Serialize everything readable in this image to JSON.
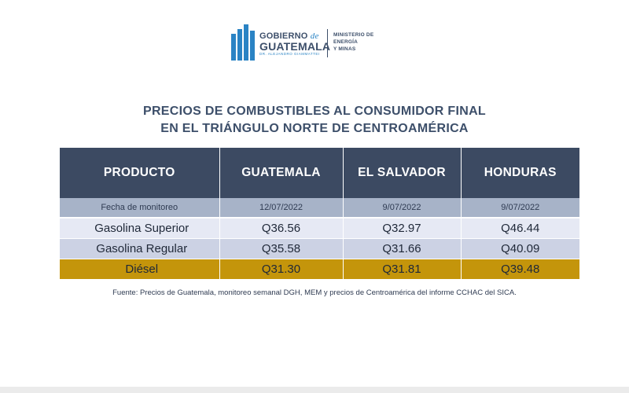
{
  "logo": {
    "line1_a": "GOBIERNO",
    "line1_de": "de",
    "line2": "GUATEMALA",
    "line3": "DR. ALEJANDRO GIAMMATTEI",
    "ministry": [
      "MINISTERIO DE",
      "ENERGÍA",
      "Y MINAS"
    ]
  },
  "title": {
    "line1": "PRECIOS DE COMBUSTIBLES AL CONSUMIDOR FINAL",
    "line2": "EN EL TRIÁNGULO NORTE DE CENTROAMÉRICA"
  },
  "table": {
    "headers": [
      "PRODUCTO",
      "GUATEMALA",
      "EL SALVADOR",
      "HONDURAS"
    ],
    "date_row": [
      "Fecha de monitoreo",
      "12/07/2022",
      "9/07/2022",
      "9/07/2022"
    ],
    "rows": [
      [
        "Gasolina Superior",
        "Q36.56",
        "Q32.97",
        "Q46.44"
      ],
      [
        "Gasolina Regular",
        "Q35.58",
        "Q31.66",
        "Q40.09"
      ],
      [
        "Diésel",
        "Q31.30",
        "Q31.81",
        "Q39.48"
      ]
    ]
  },
  "source": "Fuente: Precios de Guatemala, monitoreo semanal DGH, MEM y precios de Centroamérica del informe CCHAC del SICA.",
  "colors": {
    "header_bg": "#3c4a62",
    "date_row_bg": "#a7b3c8",
    "row_light_bg": "#e6e9f4",
    "row_mid_bg": "#ccd2e4",
    "diesel_row_bg": "#c4950b",
    "title_color": "#3d4f6a",
    "logo_blue": "#2a83c4"
  }
}
